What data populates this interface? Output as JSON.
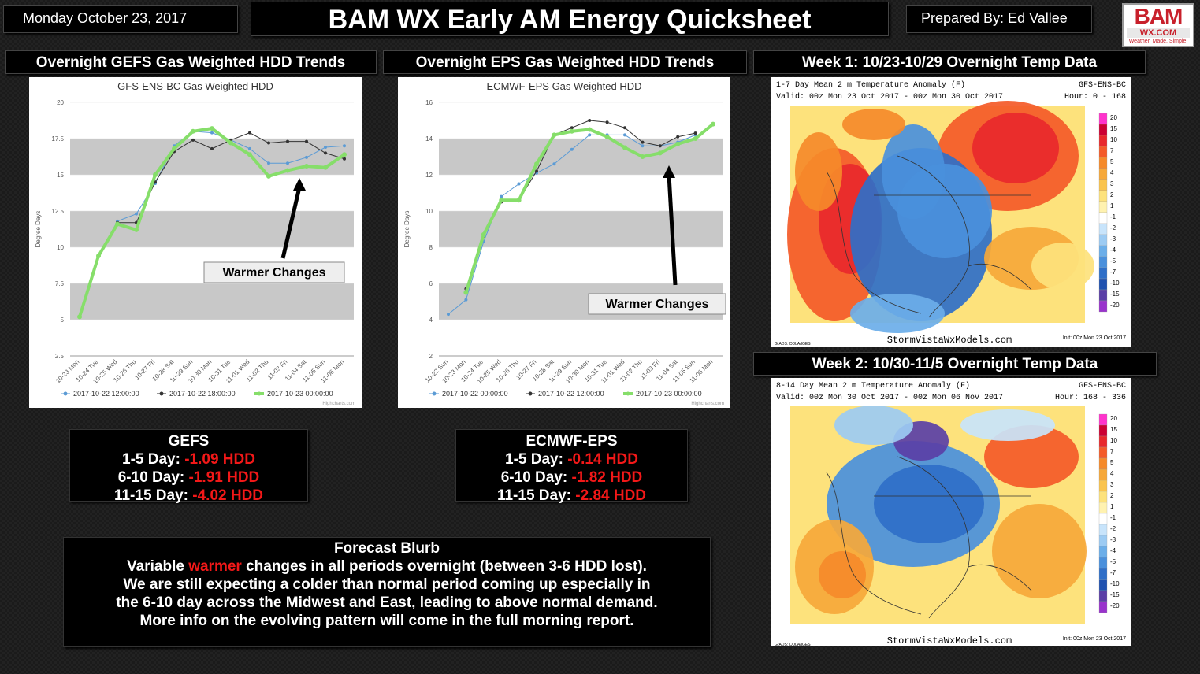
{
  "header": {
    "date": "Monday October 23, 2017",
    "title": "BAM WX Early AM Energy Quicksheet",
    "prepared_by": "Prepared By: Ed Vallee",
    "logo": {
      "text": "BAM",
      "sub": "WX.COM",
      "tagline": "Weather. Made. Simple."
    }
  },
  "sections": {
    "gefs": "Overnight GEFS Gas Weighted HDD Trends",
    "eps": "Overnight EPS Gas Weighted HDD Trends",
    "week1": "Week 1: 10/23-10/29 Overnight Temp Data",
    "week2": "Week 2: 10/30-11/5 Overnight Temp Data"
  },
  "chart_data": [
    {
      "type": "line",
      "title": "GFS-ENS-BC Gas Weighted HDD",
      "ylabel": "Degree Days",
      "ylim": [
        2.5,
        20
      ],
      "yticks": [
        "2.5",
        "5",
        "7.5",
        "10",
        "12.5",
        "15",
        "17.5",
        "20"
      ],
      "categories": [
        "10-23 Mon",
        "10-24 Tue",
        "10-25 Wed",
        "10-26 Thu",
        "10-27 Fri",
        "10-28 Sat",
        "10-29 Sun",
        "10-30 Mon",
        "10-31 Tue",
        "11-01 Wed",
        "11-02 Thu",
        "11-03 Fri",
        "11-04 Sat",
        "11-05 Sun",
        "11-06 Mon"
      ],
      "series": [
        {
          "name": "2017-10-22 12:00:00",
          "color": "#5b9bd5",
          "values": [
            null,
            9.4,
            11.8,
            12.3,
            14.4,
            17.0,
            18.0,
            17.9,
            17.4,
            16.8,
            15.8,
            15.8,
            16.2,
            16.9,
            17.0
          ]
        },
        {
          "name": "2017-10-22 18:00:00",
          "color": "#333333",
          "values": [
            null,
            9.4,
            11.7,
            11.7,
            14.5,
            16.6,
            17.4,
            16.8,
            17.4,
            17.9,
            17.2,
            17.3,
            17.3,
            16.5,
            16.1
          ]
        },
        {
          "name": "2017-10-23 00:00:00",
          "color": "#86de6a",
          "values": [
            5.2,
            9.4,
            11.6,
            11.2,
            15.0,
            16.8,
            18.0,
            18.2,
            17.2,
            16.4,
            14.9,
            15.3,
            15.6,
            15.5,
            16.4
          ]
        }
      ],
      "annotation": "Warmer Changes",
      "legend": "bottom",
      "credit": "Highcharts.com"
    },
    {
      "type": "line",
      "title": "ECMWF-EPS Gas Weighted HDD",
      "ylabel": "Degree Days",
      "ylim": [
        2,
        16
      ],
      "yticks": [
        "2",
        "4",
        "6",
        "8",
        "10",
        "12",
        "14",
        "16"
      ],
      "categories": [
        "10-22 Sun",
        "10-23 Mon",
        "10-24 Tue",
        "10-25 Wed",
        "10-26 Thu",
        "10-27 Fri",
        "10-28 Sat",
        "10-29 Sun",
        "10-30 Mon",
        "10-31 Tue",
        "11-01 Wed",
        "11-02 Thu",
        "11-03 Fri",
        "11-04 Sat",
        "11-05 Sun",
        "11-06 Mon"
      ],
      "series": [
        {
          "name": "2017-10-22 00:00:00",
          "color": "#5b9bd5",
          "values": [
            4.3,
            5.1,
            8.3,
            10.8,
            11.5,
            12.1,
            12.6,
            13.4,
            14.2,
            14.2,
            14.2,
            13.6,
            13.6,
            13.8,
            14.2,
            null
          ]
        },
        {
          "name": "2017-10-22 12:00:00",
          "color": "#333333",
          "values": [
            null,
            5.7,
            8.6,
            10.5,
            10.6,
            12.2,
            14.2,
            14.6,
            15.0,
            14.9,
            14.6,
            13.8,
            13.6,
            14.1,
            14.3,
            null
          ]
        },
        {
          "name": "2017-10-23 00:00:00",
          "color": "#86de6a",
          "values": [
            null,
            5.5,
            8.7,
            10.6,
            10.6,
            12.6,
            14.2,
            14.4,
            14.5,
            14.1,
            13.5,
            13.0,
            13.2,
            13.7,
            14.0,
            14.8
          ]
        }
      ],
      "annotation": "Warmer Changes",
      "legend": "bottom",
      "credit": "Highcharts.com"
    },
    {
      "type": "heatmap",
      "title": "1-7 Day Mean 2 m Temperature Anomaly (F)",
      "model": "GFS-ENS-BC",
      "valid": "Valid: 00z Mon 23 Oct 2017 - 00z Mon 30 Oct 2017",
      "hours": "Hour: 0 - 168",
      "colorbar": [
        "20",
        "15",
        "10",
        "7",
        "5",
        "4",
        "3",
        "2",
        "1",
        "-1",
        "-2",
        "-3",
        "-4",
        "-5",
        "-7",
        "-10",
        "-15",
        "-20"
      ],
      "footer": "StormVistaWxModels.com",
      "init": "Init: 00z Mon 23 Oct 2017",
      "source": "GrADS: COLA/IGES"
    },
    {
      "type": "heatmap",
      "title": "8-14 Day Mean 2 m Temperature Anomaly (F)",
      "model": "GFS-ENS-BC",
      "valid": "Valid: 00z Mon 30 Oct 2017 - 00z Mon 06 Nov 2017",
      "hours": "Hour: 168 - 336",
      "colorbar": [
        "20",
        "15",
        "10",
        "7",
        "5",
        "4",
        "3",
        "2",
        "1",
        "-1",
        "-2",
        "-3",
        "-4",
        "-5",
        "-7",
        "-10",
        "-15",
        "-20"
      ],
      "footer": "StormVistaWxModels.com",
      "init": "Init: 00z Mon 23 Oct 2017",
      "source": "GrADS: COLA/IGES"
    }
  ],
  "colorbar_colors": [
    "#ff33cc",
    "#cc0033",
    "#e8282c",
    "#f45a28",
    "#f58a2a",
    "#f6a83a",
    "#fac44e",
    "#fde27c",
    "#fff2b0",
    "#ffffff",
    "#c8e4fb",
    "#9ccbf3",
    "#6baee9",
    "#4a90dc",
    "#2f6fc8",
    "#2052b0",
    "#5a3fa6",
    "#9933cc"
  ],
  "gefs_box": {
    "title": "GEFS",
    "rows": [
      {
        "label": "1-5 Day:",
        "value": "-1.09 HDD"
      },
      {
        "label": "6-10 Day:",
        "value": "-1.91 HDD"
      },
      {
        "label": "11-15 Day:",
        "value": "-4.02 HDD"
      }
    ]
  },
  "eps_box": {
    "title": "ECMWF-EPS",
    "rows": [
      {
        "label": "1-5 Day:",
        "value": "-0.14 HDD"
      },
      {
        "label": "6-10 Day:",
        "value": "-1.82 HDD"
      },
      {
        "label": "11-15 Day:",
        "value": "-2.84 HDD"
      }
    ]
  },
  "blurb": {
    "title": "Forecast Blurb",
    "line1_a": "Variable ",
    "line1_b": "warmer",
    "line1_c": " changes in all periods overnight (between 3-6 HDD lost).",
    "line2": "We are still expecting a colder than normal period coming up especially in",
    "line3": "the 6-10 day across the Midwest and East, leading to above normal demand.",
    "line4": "More info on the evolving pattern will come in the full morning report."
  }
}
